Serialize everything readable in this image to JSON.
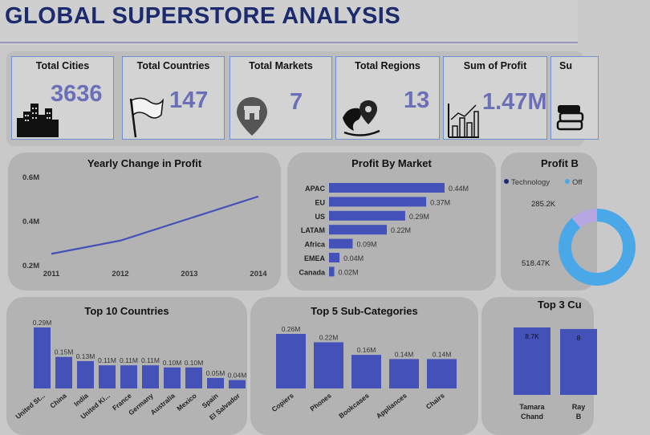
{
  "header": {
    "title": "GLOBAL SUPERSTORE ANALYSIS"
  },
  "kpis": [
    {
      "label": "Total Cities",
      "value": "3636",
      "icon": "city-skyline-icon"
    },
    {
      "label": "Total Countries",
      "value": "147",
      "icon": "white-flag-icon"
    },
    {
      "label": "Total Markets",
      "value": "7",
      "icon": "store-pin-icon"
    },
    {
      "label": "Total Regions",
      "value": "13",
      "icon": "globe-pin-icon"
    },
    {
      "label": "Sum of Profit",
      "value": "1.47M",
      "icon": "bar-chart-icon"
    },
    {
      "label": "Su",
      "value": "",
      "icon": "books-icon"
    }
  ],
  "chart_data": [
    {
      "type": "line",
      "title": "Yearly Change in Profit",
      "x": [
        "2011",
        "2012",
        "2013",
        "2014"
      ],
      "series": [
        {
          "values": [
            0.25,
            0.31,
            0.41,
            0.51
          ]
        }
      ],
      "ylim": [
        0.2,
        0.6
      ],
      "yticks": [
        "0.2M",
        "0.4M",
        "0.6M"
      ],
      "color": "#4351b8"
    },
    {
      "type": "bar",
      "orientation": "horizontal",
      "title": "Profit By Market",
      "categories": [
        "APAC",
        "EU",
        "US",
        "LATAM",
        "Africa",
        "EMEA",
        "Canada"
      ],
      "values": [
        0.44,
        0.37,
        0.29,
        0.22,
        0.09,
        0.04,
        0.02
      ],
      "labels": [
        "0.44M",
        "0.37M",
        "0.29M",
        "0.22M",
        "0.09M",
        "0.04M",
        "0.02M"
      ],
      "color": "#4351b8"
    },
    {
      "type": "pie",
      "title": "Profit B",
      "legend": [
        "Technology",
        "Off"
      ],
      "legend_colors": [
        "#1c2a6e",
        "#4aa8e8"
      ],
      "labels": [
        "285.2K",
        "518.47K"
      ]
    },
    {
      "type": "bar",
      "title": "Top 10 Countries",
      "categories": [
        "United St...",
        "China",
        "India",
        "United Ki...",
        "France",
        "Germany",
        "Australia",
        "Mexico",
        "Spain",
        "El Salvador"
      ],
      "values": [
        0.29,
        0.15,
        0.13,
        0.11,
        0.11,
        0.11,
        0.1,
        0.1,
        0.05,
        0.04
      ],
      "labels": [
        "0.29M",
        "0.15M",
        "0.13M",
        "0.11M",
        "0.11M",
        "0.11M",
        "0.10M",
        "0.10M",
        "0.05M",
        "0.04M"
      ],
      "color": "#4351b8"
    },
    {
      "type": "bar",
      "title": "Top 5 Sub-Categories",
      "categories": [
        "Copiers",
        "Phones",
        "Bookcases",
        "Appliances",
        "Chairs"
      ],
      "values": [
        0.26,
        0.22,
        0.16,
        0.14,
        0.14
      ],
      "labels": [
        "0.26M",
        "0.22M",
        "0.16M",
        "0.14M",
        "0.14M"
      ],
      "color": "#4351b8"
    },
    {
      "type": "bar",
      "title": "Top 3 Cu",
      "categories": [
        "Tamara Chand",
        "Ray B"
      ],
      "values": [
        8.7,
        8.5
      ],
      "labels": [
        "8.7K",
        "8"
      ],
      "color": "#4351b8"
    }
  ]
}
